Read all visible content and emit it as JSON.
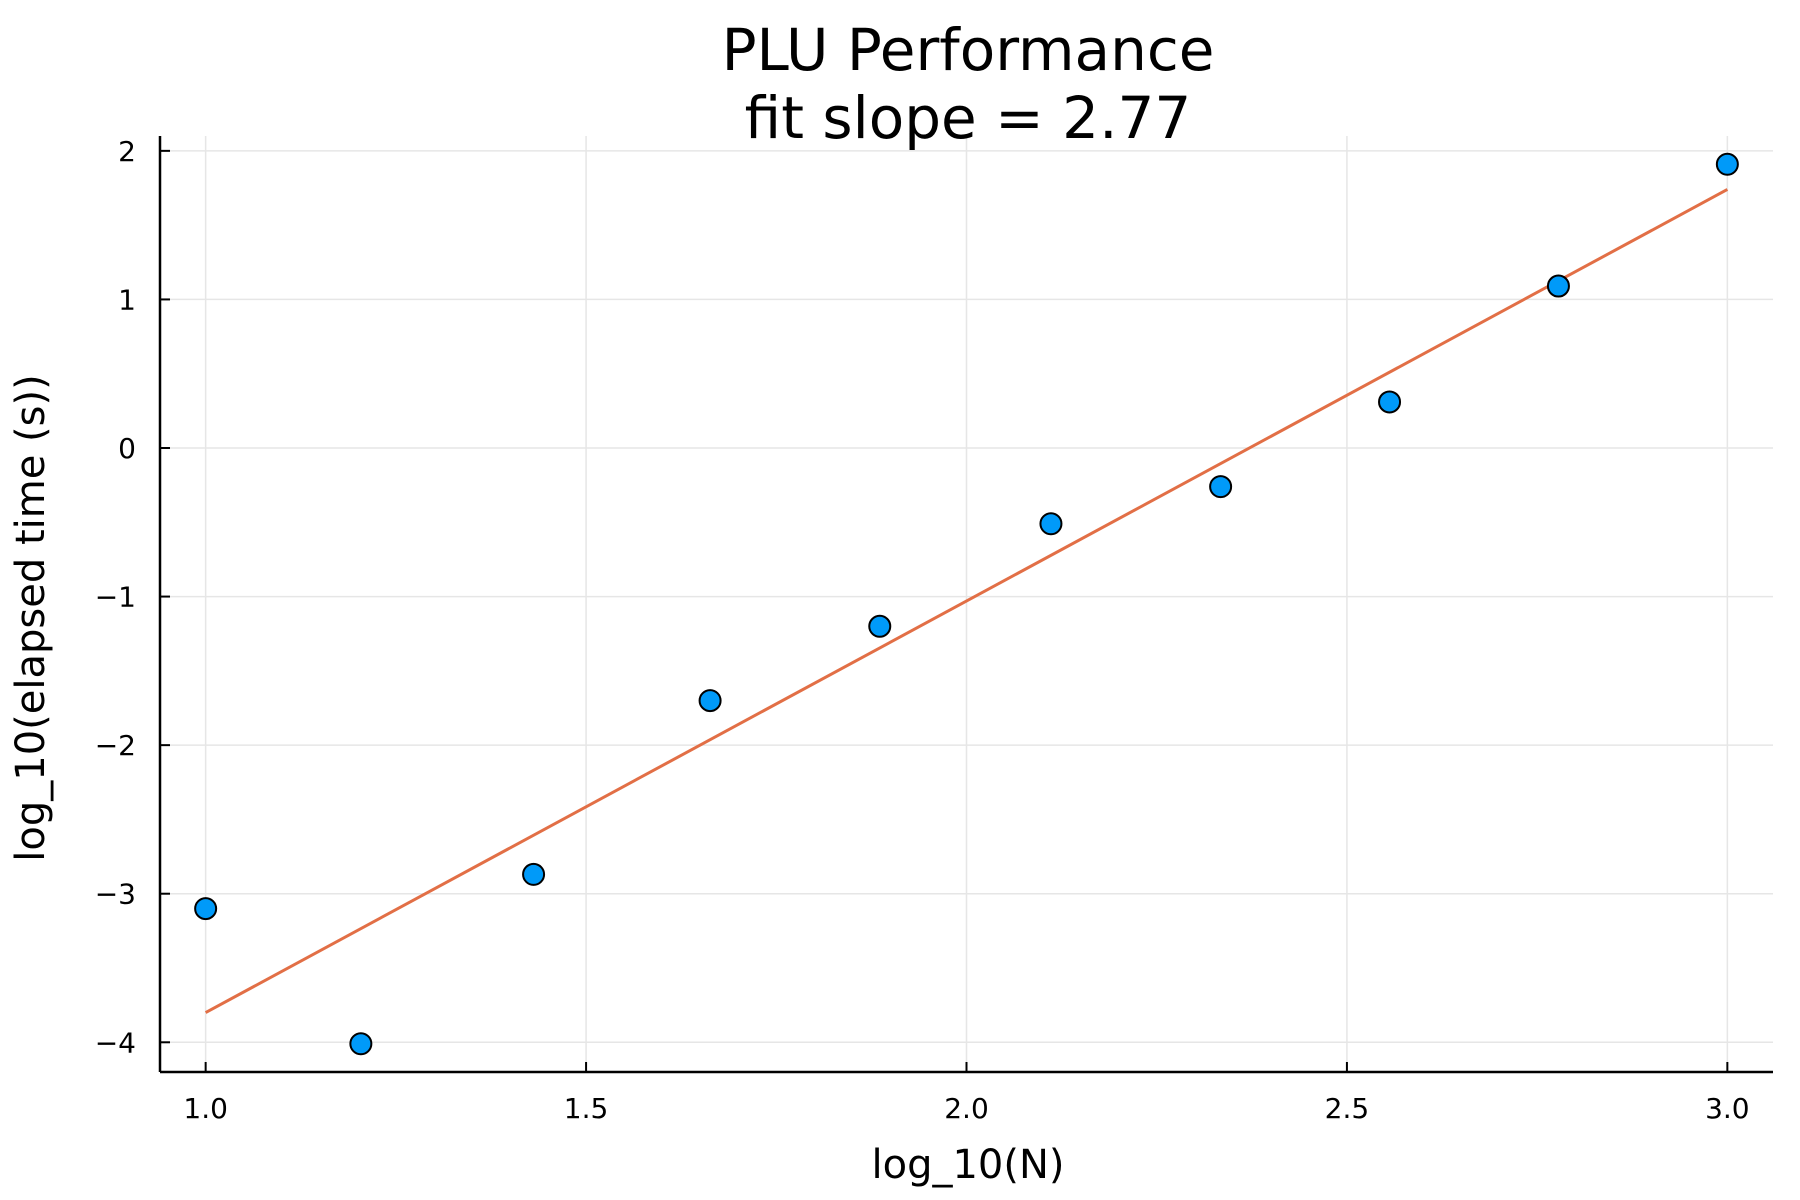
{
  "chart_data": {
    "type": "scatter",
    "title": [
      "PLU Performance",
      "fit slope = 2.77"
    ],
    "xlabel": "log_10(N)",
    "ylabel": "log_10(elapsed time (s))",
    "xlim": [
      0.94,
      3.06
    ],
    "ylim": [
      -4.2,
      2.1
    ],
    "xticks": [
      1.0,
      1.5,
      2.0,
      2.5,
      3.0
    ],
    "xtick_labels": [
      "1.0",
      "1.5",
      "2.0",
      "2.5",
      "3.0"
    ],
    "yticks": [
      -4,
      -3,
      -2,
      -1,
      0,
      1,
      2
    ],
    "ytick_labels": [
      "−4",
      "−3",
      "−2",
      "−1",
      "0",
      "1",
      "2"
    ],
    "grid": true,
    "legend": "none",
    "series": [
      {
        "type": "scatter",
        "color": "#009af9",
        "x": [
          1.0,
          1.204,
          1.431,
          1.663,
          1.886,
          2.111,
          2.334,
          2.556,
          2.778,
          3.0
        ],
        "y": [
          -3.1,
          -4.01,
          -2.87,
          -1.7,
          -1.2,
          -0.51,
          -0.26,
          0.31,
          1.09,
          1.91
        ]
      },
      {
        "type": "line",
        "color": "#e26f46",
        "x": [
          1.0,
          3.0
        ],
        "y": [
          -3.8,
          1.74
        ]
      }
    ]
  }
}
